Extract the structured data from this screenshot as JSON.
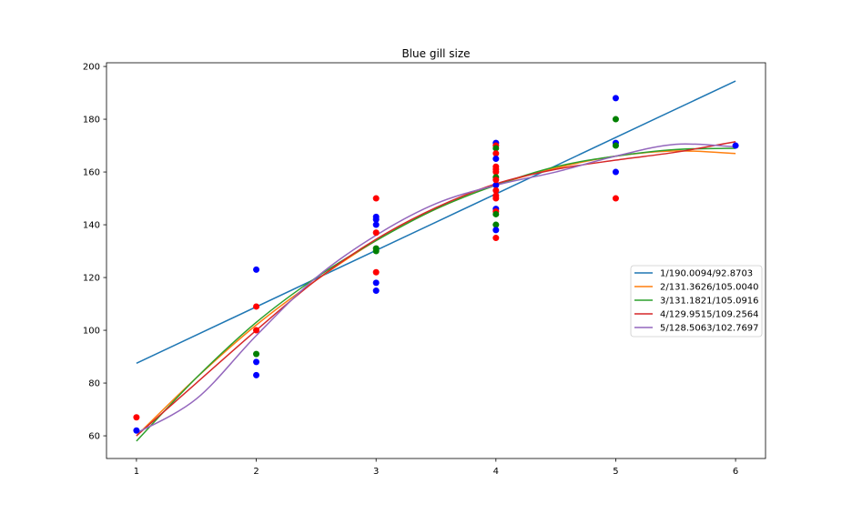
{
  "chart_data": {
    "type": "scatter",
    "title": "Blue gill size",
    "xlabel": "",
    "ylabel": "",
    "xlim": [
      0.75,
      6.25
    ],
    "ylim": [
      51.4,
      201.4
    ],
    "xticks": [
      1,
      2,
      3,
      4,
      5,
      6
    ],
    "yticks": [
      60,
      80,
      100,
      120,
      140,
      160,
      180,
      200
    ],
    "grid": false,
    "legend_position": "center-right",
    "points": [
      {
        "x": 1,
        "y": 67,
        "color": "#ff0000"
      },
      {
        "x": 1,
        "y": 62,
        "color": "#0000ff"
      },
      {
        "x": 2,
        "y": 123,
        "color": "#0000ff"
      },
      {
        "x": 2,
        "y": 109,
        "color": "#ff0000"
      },
      {
        "x": 2,
        "y": 100,
        "color": "#ff0000"
      },
      {
        "x": 2,
        "y": 91,
        "color": "#008000"
      },
      {
        "x": 2,
        "y": 88,
        "color": "#0000ff"
      },
      {
        "x": 2,
        "y": 83,
        "color": "#0000ff"
      },
      {
        "x": 3,
        "y": 150,
        "color": "#ff0000"
      },
      {
        "x": 3,
        "y": 143,
        "color": "#0000ff"
      },
      {
        "x": 3,
        "y": 142,
        "color": "#0000ff"
      },
      {
        "x": 3,
        "y": 140,
        "color": "#0000ff"
      },
      {
        "x": 3,
        "y": 137,
        "color": "#ff0000"
      },
      {
        "x": 3,
        "y": 131,
        "color": "#008000"
      },
      {
        "x": 3,
        "y": 130,
        "color": "#008000"
      },
      {
        "x": 3,
        "y": 122,
        "color": "#ff0000"
      },
      {
        "x": 3,
        "y": 118,
        "color": "#0000ff"
      },
      {
        "x": 3,
        "y": 115,
        "color": "#0000ff"
      },
      {
        "x": 4,
        "y": 171,
        "color": "#0000ff"
      },
      {
        "x": 4,
        "y": 170,
        "color": "#ff0000"
      },
      {
        "x": 4,
        "y": 169,
        "color": "#008000"
      },
      {
        "x": 4,
        "y": 167,
        "color": "#ff0000"
      },
      {
        "x": 4,
        "y": 165,
        "color": "#0000ff"
      },
      {
        "x": 4,
        "y": 162,
        "color": "#ff0000"
      },
      {
        "x": 4,
        "y": 161,
        "color": "#ff0000"
      },
      {
        "x": 4,
        "y": 160,
        "color": "#ff0000"
      },
      {
        "x": 4,
        "y": 158,
        "color": "#008000"
      },
      {
        "x": 4,
        "y": 155,
        "color": "#0000ff"
      },
      {
        "x": 4,
        "y": 157,
        "color": "#ff0000"
      },
      {
        "x": 4,
        "y": 153,
        "color": "#ff0000"
      },
      {
        "x": 4,
        "y": 151,
        "color": "#ff0000"
      },
      {
        "x": 4,
        "y": 150,
        "color": "#ff0000"
      },
      {
        "x": 4,
        "y": 146,
        "color": "#0000ff"
      },
      {
        "x": 4,
        "y": 145,
        "color": "#ff0000"
      },
      {
        "x": 4,
        "y": 144,
        "color": "#008000"
      },
      {
        "x": 4,
        "y": 140,
        "color": "#008000"
      },
      {
        "x": 4,
        "y": 138,
        "color": "#0000ff"
      },
      {
        "x": 4,
        "y": 135,
        "color": "#ff0000"
      },
      {
        "x": 5,
        "y": 188,
        "color": "#0000ff"
      },
      {
        "x": 5,
        "y": 180,
        "color": "#008000"
      },
      {
        "x": 5,
        "y": 171,
        "color": "#0000ff"
      },
      {
        "x": 5,
        "y": 170,
        "color": "#008000"
      },
      {
        "x": 5,
        "y": 160,
        "color": "#0000ff"
      },
      {
        "x": 5,
        "y": 150,
        "color": "#ff0000"
      },
      {
        "x": 6,
        "y": 170,
        "color": "#0000ff"
      }
    ],
    "series": [
      {
        "name": "1/190.0094/92.8703",
        "color": "#1f77b4",
        "x": [
          1,
          6
        ],
        "y": [
          87.5,
          194.5
        ]
      },
      {
        "name": "2/131.3626/105.0040",
        "color": "#ff7f0e",
        "x": [
          1,
          1.5,
          2,
          2.5,
          3,
          3.5,
          4,
          4.5,
          5,
          5.5,
          6
        ],
        "y": [
          60,
          82,
          102,
          119,
          134,
          146,
          155,
          161.5,
          166,
          168,
          167
        ]
      },
      {
        "name": "3/131.1821/105.0916",
        "color": "#2ca02c",
        "x": [
          1,
          1.5,
          2,
          2.5,
          3,
          3.5,
          4,
          4.5,
          5,
          5.5,
          6
        ],
        "y": [
          58,
          82,
          103,
          120,
          134,
          146,
          155,
          162,
          166,
          168.5,
          169
        ]
      },
      {
        "name": "4/129.9515/109.2564",
        "color": "#d62728",
        "x": [
          1,
          1.5,
          2,
          2.5,
          3,
          3.5,
          4,
          4.5,
          5,
          5.5,
          6
        ],
        "y": [
          60,
          80,
          100,
          119,
          134.5,
          146.5,
          155.5,
          161,
          164.5,
          167.5,
          171.5
        ]
      },
      {
        "name": "5/128.5063/102.7697",
        "color": "#9467bd",
        "x": [
          1,
          1.5,
          2,
          2.5,
          3,
          3.5,
          4,
          4.5,
          5,
          5.5,
          6
        ],
        "y": [
          61,
          74,
          98,
          120,
          136,
          148,
          155,
          160,
          166,
          170.5,
          169.5
        ]
      }
    ]
  }
}
